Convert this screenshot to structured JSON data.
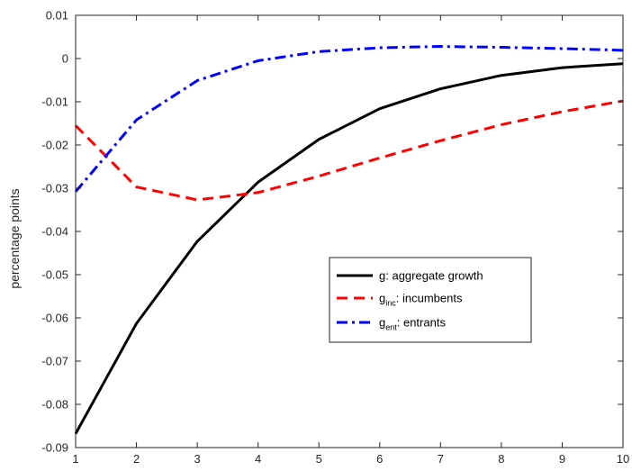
{
  "chart_data": {
    "type": "line",
    "xlabel": "",
    "ylabel": "percentage points",
    "xlim": [
      1,
      10
    ],
    "ylim": [
      -0.09,
      0.01
    ],
    "xticks": [
      1,
      2,
      3,
      4,
      5,
      6,
      7,
      8,
      9,
      10
    ],
    "xtick_labels": [
      "1",
      "2",
      "3",
      "4",
      "5",
      "6",
      "7",
      "8",
      "9",
      "10"
    ],
    "yticks": [
      0.01,
      0,
      -0.01,
      -0.02,
      -0.03,
      -0.04,
      -0.05,
      -0.06,
      -0.07,
      -0.08,
      -0.09
    ],
    "ytick_labels": [
      "0.01",
      "0",
      "-0.01",
      "-0.02",
      "-0.03",
      "-0.04",
      "-0.05",
      "-0.06",
      "-0.07",
      "-0.08",
      "-0.09"
    ],
    "grid": false,
    "legend_position": "center-right",
    "x": [
      1,
      2,
      3,
      4,
      5,
      6,
      7,
      8,
      9,
      10
    ],
    "series": [
      {
        "legend_main": "g",
        "legend_sub": "",
        "legend_rest": ": aggregate growth",
        "color": "#000000",
        "style": "solid",
        "values": [
          -0.0868,
          -0.0613,
          -0.0423,
          -0.0286,
          -0.0187,
          -0.0116,
          -0.007,
          -0.0039,
          -0.0021,
          -0.0012
        ]
      },
      {
        "legend_main": "g",
        "legend_sub": "inc",
        "legend_rest": ": incumbents",
        "color": "#ff0000",
        "style": "dashed",
        "values": [
          -0.0155,
          -0.0297,
          -0.0327,
          -0.031,
          -0.0272,
          -0.023,
          -0.019,
          -0.0153,
          -0.0123,
          -0.0098
        ]
      },
      {
        "legend_main": "g",
        "legend_sub": "ent",
        "legend_rest": ": entrants",
        "color": "#0000ff",
        "style": "dashdot",
        "values": [
          -0.0308,
          -0.0142,
          -0.0051,
          -0.0005,
          0.0016,
          0.0025,
          0.0028,
          0.0026,
          0.0023,
          0.0019
        ]
      }
    ]
  }
}
